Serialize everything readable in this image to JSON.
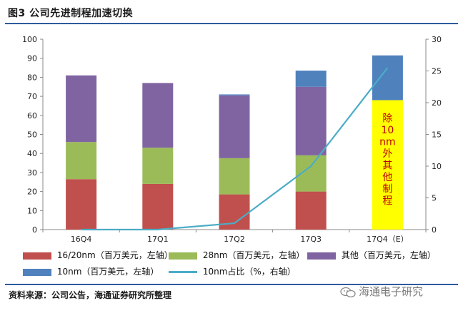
{
  "title": "图3  公司先进制程加速切换",
  "source": "资料来源：公司公告，海通证券研究所整理",
  "watermark": "海通电子研究",
  "chart_data": {
    "type": "bar",
    "stacked": true,
    "categories": [
      "16Q4",
      "17Q1",
      "17Q2",
      "17Q3",
      "17Q4（E）"
    ],
    "series": [
      {
        "name": "16/20nm（百万美元，左轴）",
        "values": [
          26.5,
          24,
          18.5,
          20,
          0
        ],
        "color": "#c0504d"
      },
      {
        "name": "28nm（百万美元，左轴）",
        "values": [
          19.5,
          19,
          19,
          19,
          0
        ],
        "color": "#9bbb59"
      },
      {
        "name": "其他（百万美元，左轴）",
        "values": [
          35,
          34,
          33,
          36,
          0
        ],
        "color": "#8064a2"
      },
      {
        "name": "10nm（百万美元，左轴）",
        "values": [
          0,
          0,
          0.5,
          8.5,
          23.5
        ],
        "color": "#4f81bd"
      }
    ],
    "highlight_bar": {
      "category": "17Q4（E）",
      "value": 68,
      "color": "#ffff00",
      "label": "除10nm外其他制程",
      "label_lines": [
        "除",
        "10",
        "nm",
        "外",
        "其",
        "他",
        "制",
        "程"
      ],
      "label_color": "#c00000"
    },
    "line_series": {
      "name": "10nm占比（%，右轴）",
      "values": [
        0,
        0,
        1,
        10,
        25.5
      ],
      "color": "#4bacc6",
      "axis": "right"
    },
    "ylim": [
      0,
      100
    ],
    "yticks": [
      0,
      10,
      20,
      30,
      40,
      50,
      60,
      70,
      80,
      90,
      100
    ],
    "y2lim": [
      0,
      30
    ],
    "y2ticks": [
      0,
      5,
      10,
      15,
      20,
      25,
      30
    ],
    "legend_position": "bottom"
  }
}
